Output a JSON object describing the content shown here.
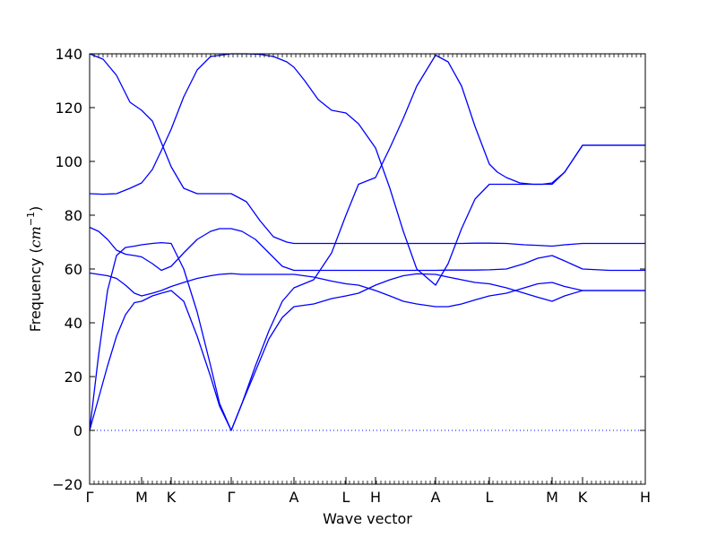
{
  "chart_data": {
    "type": "line",
    "xlabel": "Wave vector",
    "ylabel": "Frequency",
    "ylabel_unit": "cm",
    "ylabel_unit_exp": "−1",
    "ylim": [
      -20,
      140
    ],
    "yticks": [
      -20,
      0,
      20,
      40,
      60,
      80,
      100,
      120,
      140
    ],
    "x_ticks": [
      {
        "label": "Γ",
        "x": 0
      },
      {
        "label": "M",
        "x": 0.58
      },
      {
        "label": "K",
        "x": 0.91
      },
      {
        "label": "Γ",
        "x": 1.58
      },
      {
        "label": "A",
        "x": 2.28
      },
      {
        "label": "L",
        "x": 2.86
      },
      {
        "label": "H",
        "x": 3.19
      },
      {
        "label": "A",
        "x": 3.86
      },
      {
        "label": "L",
        "x": 4.46
      },
      {
        "label": "M",
        "x": 5.16
      },
      {
        "label": "K",
        "x": 5.5
      },
      {
        "label": "H",
        "x": 6.2
      }
    ],
    "xlim": [
      0,
      6.2
    ],
    "zero_line": true,
    "line_color": "#0000ff",
    "series": [
      {
        "x": [
          0,
          0.15,
          0.3,
          0.45,
          0.58,
          0.7,
          0.8,
          0.91,
          1.05,
          1.2,
          1.35,
          1.58,
          1.75,
          1.9,
          2.05,
          2.2,
          2.28,
          2.4,
          2.55,
          2.7,
          2.86,
          3.0,
          3.19,
          3.35,
          3.5,
          3.65,
          3.86,
          4.0,
          4.15,
          4.3,
          4.46,
          4.65,
          4.85,
          5.0,
          5.16,
          5.3,
          5.5,
          5.8,
          6.2
        ],
        "values": [
          140,
          138,
          132,
          122,
          119,
          115,
          107,
          98,
          90,
          88,
          88,
          88,
          85,
          78,
          72,
          70,
          69.5,
          69.5,
          69.5,
          69.5,
          69.5,
          69.5,
          69.5,
          69.5,
          69.5,
          69.5,
          69.5,
          69.5,
          69.5,
          69.6,
          69.6,
          69.5,
          69,
          68.8,
          68.5,
          69,
          69.5,
          69.5,
          69.5
        ]
      },
      {
        "x": [
          0,
          0.15,
          0.3,
          0.45,
          0.58,
          0.7,
          0.8,
          0.91,
          1.05,
          1.2,
          1.35,
          1.58,
          1.75,
          1.9,
          2.05,
          2.2,
          2.28,
          2.4,
          2.55,
          2.7,
          2.86,
          3.0,
          3.19,
          3.35,
          3.5,
          3.65,
          3.86,
          4.0,
          4.15,
          4.3,
          4.46,
          4.65,
          4.85,
          5.0,
          5.16,
          5.3,
          5.5,
          5.8,
          6.2
        ],
        "values": [
          88,
          87.8,
          88,
          90,
          92,
          97,
          104,
          112,
          124,
          134,
          139,
          140,
          140,
          139.8,
          139,
          137,
          135,
          130,
          123,
          119,
          118,
          114,
          105,
          90,
          74,
          60,
          54,
          62,
          75,
          86,
          91.5,
          91.5,
          91.5,
          91.5,
          91.5,
          96,
          106,
          106,
          106
        ]
      },
      {
        "x": [
          0,
          0.1,
          0.2,
          0.3,
          0.4,
          0.5,
          0.58,
          0.7,
          0.8,
          0.91,
          1.05,
          1.2,
          1.35,
          1.45,
          1.58,
          1.7,
          1.85,
          2.0,
          2.15,
          2.28,
          2.5,
          2.7,
          2.86,
          3.0,
          3.19,
          3.35,
          3.5,
          3.65,
          3.86,
          4.0,
          4.15,
          4.3,
          4.46,
          4.55,
          4.65,
          4.8,
          4.95,
          5.05,
          5.16,
          5.3,
          5.5,
          5.8,
          6.2
        ],
        "values": [
          0,
          28,
          52,
          65,
          68,
          68.5,
          69,
          69.5,
          69.8,
          69.5,
          60,
          44,
          24,
          10,
          0,
          10,
          24,
          37,
          48,
          53,
          56,
          66,
          80,
          91.5,
          94,
          105,
          116,
          128,
          139.5,
          137,
          128,
          113,
          99,
          96,
          94,
          92,
          91.5,
          91.5,
          92,
          96,
          106,
          106,
          106
        ]
      },
      {
        "x": [
          0,
          0.1,
          0.2,
          0.3,
          0.4,
          0.5,
          0.58,
          0.7,
          0.8,
          0.91,
          1.05,
          1.2,
          1.35,
          1.45,
          1.58,
          1.7,
          1.85,
          2.0,
          2.15,
          2.28,
          2.5,
          2.7,
          2.86,
          3.0,
          3.19,
          3.35,
          3.5,
          3.65,
          3.86,
          4.0,
          4.15,
          4.3,
          4.46,
          4.65,
          4.85,
          5.0,
          5.16,
          5.3,
          5.5,
          5.8,
          6.2
        ],
        "values": [
          75.5,
          74,
          71,
          67,
          65.5,
          65,
          64.5,
          62,
          59.5,
          61,
          66,
          71,
          74,
          75,
          75,
          74,
          71,
          66,
          61,
          59.5,
          59.5,
          59.5,
          59.5,
          59.5,
          59.5,
          59.5,
          59.5,
          59.5,
          59.5,
          59.6,
          59.6,
          59.6,
          59.7,
          60,
          62,
          64,
          65,
          63,
          60,
          59.5,
          59.5
        ]
      },
      {
        "x": [
          0,
          0.1,
          0.2,
          0.3,
          0.4,
          0.5,
          0.58,
          0.7,
          0.8,
          0.91,
          1.05,
          1.2,
          1.35,
          1.45,
          1.58,
          1.7,
          1.85,
          2.0,
          2.15,
          2.28,
          2.5,
          2.7,
          2.86,
          3.0,
          3.19,
          3.35,
          3.5,
          3.65,
          3.86,
          4.0,
          4.15,
          4.3,
          4.46,
          4.65,
          4.85,
          5.0,
          5.16,
          5.3,
          5.5,
          5.8,
          6.2
        ],
        "values": [
          58.5,
          58,
          57.5,
          56.5,
          54,
          51,
          50,
          51,
          52,
          53.5,
          55,
          56.5,
          57.5,
          58,
          58.3,
          58,
          58,
          58,
          58,
          58,
          57,
          55.5,
          54.5,
          54,
          52,
          50,
          48,
          47,
          46,
          46,
          47,
          48.5,
          50,
          51,
          53,
          54.5,
          55,
          53.5,
          52,
          52,
          52
        ]
      },
      {
        "x": [
          0,
          0.1,
          0.2,
          0.3,
          0.4,
          0.5,
          0.58,
          0.7,
          0.8,
          0.91,
          1.05,
          1.2,
          1.35,
          1.45,
          1.58,
          1.7,
          1.85,
          2.0,
          2.15,
          2.28,
          2.5,
          2.7,
          2.86,
          3.0,
          3.19,
          3.35,
          3.5,
          3.65,
          3.86,
          4.0,
          4.15,
          4.3,
          4.46,
          4.65,
          4.85,
          5.0,
          5.16,
          5.3,
          5.5,
          5.8,
          6.2
        ],
        "values": [
          0,
          12,
          24,
          35,
          43,
          47.5,
          48,
          50,
          51,
          52,
          48,
          35,
          20,
          9,
          0,
          10,
          22,
          34,
          42,
          46,
          47,
          49,
          50,
          51,
          54,
          56,
          57.5,
          58.2,
          58,
          57,
          56,
          55,
          54.5,
          53,
          51,
          49.5,
          48,
          50,
          52,
          52,
          52
        ]
      }
    ]
  }
}
